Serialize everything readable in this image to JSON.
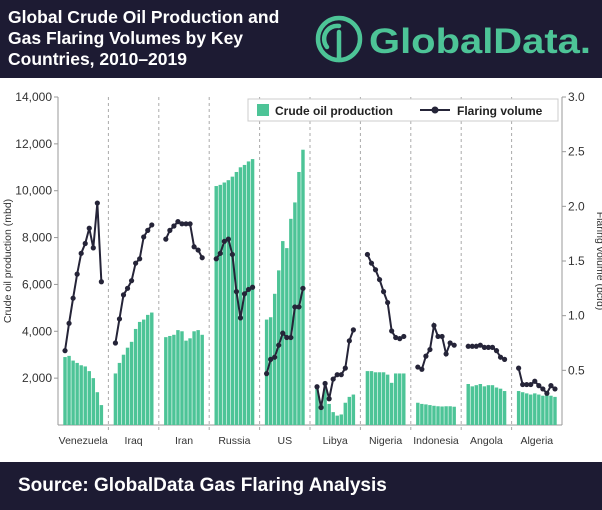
{
  "header": {
    "title_lines": [
      "Global Crude Oil Production and",
      "Gas Flaring Volumes by Key",
      "Countries, 2010–2019"
    ],
    "logo_text": "GlobalData."
  },
  "footer": {
    "source": "Source:  GlobalData Gas Flaring Analysis"
  },
  "colors": {
    "bar": "#4dc497",
    "line": "#252438",
    "header_bg": "#1d1b33",
    "logo": "#4dc497"
  },
  "chart_data": {
    "type": "bar+line",
    "years": [
      2010,
      2019
    ],
    "categories": [
      "Venezuela",
      "Iraq",
      "Iran",
      "Russia",
      "US",
      "Libya",
      "Nigeria",
      "Indonesia",
      "Angola",
      "Algeria"
    ],
    "y_left": {
      "label": "Crude oil production (mbd)",
      "range": [
        0,
        14000
      ],
      "ticks": [
        "2,000",
        "4,000",
        "6,000",
        "8,000",
        "10,000",
        "12,000",
        "14,000"
      ]
    },
    "y_right": {
      "label": "Flaring volume (bcfd)",
      "range": [
        0,
        3.0
      ],
      "ticks": [
        "0.5",
        "1.0",
        "1.5",
        "2.0",
        "2.5",
        "3.0"
      ]
    },
    "legend": {
      "position": "top-right",
      "entries": [
        "Crude oil production",
        "Flaring volume"
      ]
    },
    "series": [
      {
        "name": "Crude oil production",
        "type": "bar",
        "axis": "left",
        "values": [
          [
            2900,
            2950,
            2750,
            2650,
            2550,
            2500,
            2300,
            2000,
            1400,
            850
          ],
          [
            2200,
            2650,
            3000,
            3300,
            3550,
            4100,
            4400,
            4500,
            4700,
            4800
          ],
          [
            3750,
            3800,
            3850,
            4050,
            4000,
            3600,
            3700,
            4000,
            4050,
            3850
          ],
          [
            10200,
            10250,
            10350,
            10450,
            10600,
            10800,
            11000,
            11100,
            11250,
            11350
          ],
          [
            4500,
            4600,
            5600,
            6600,
            7850,
            7550,
            8800,
            9500,
            10800,
            11750
          ],
          [
            1650,
            900,
            1550,
            900,
            550,
            400,
            450,
            950,
            1200,
            1300
          ],
          [
            2300,
            2300,
            2250,
            2250,
            2250,
            2150,
            1800,
            2200,
            2200,
            2200
          ],
          [
            950,
            900,
            880,
            850,
            820,
            800,
            790,
            800,
            800,
            780
          ],
          [
            1750,
            1650,
            1700,
            1750,
            1650,
            1700,
            1700,
            1600,
            1550,
            1450
          ],
          [
            1450,
            1400,
            1350,
            1300,
            1350,
            1300,
            1250,
            1300,
            1250,
            1200
          ]
        ]
      },
      {
        "name": "Flaring volume",
        "type": "line",
        "axis": "right",
        "values": [
          [
            0.68,
            0.93,
            1.16,
            1.38,
            1.57,
            1.66,
            1.8,
            1.62,
            2.03,
            1.31
          ],
          [
            0.75,
            0.97,
            1.19,
            1.25,
            1.32,
            1.48,
            1.52,
            1.72,
            1.78,
            1.83
          ],
          [
            1.7,
            1.78,
            1.82,
            1.86,
            1.84,
            1.84,
            1.84,
            1.63,
            1.6,
            1.53
          ],
          [
            1.52,
            1.57,
            1.68,
            1.7,
            1.56,
            1.22,
            0.98,
            1.2,
            1.24,
            1.26
          ],
          [
            0.47,
            0.6,
            0.62,
            0.73,
            0.84,
            0.8,
            0.8,
            1.08,
            1.08,
            1.25
          ],
          [
            0.35,
            0.16,
            0.38,
            0.24,
            0.42,
            0.46,
            0.46,
            0.52,
            0.77,
            0.87
          ],
          [
            1.56,
            1.48,
            1.42,
            1.33,
            1.22,
            1.12,
            0.86,
            0.8,
            0.79,
            0.81
          ],
          [
            0.53,
            0.51,
            0.63,
            0.69,
            0.91,
            0.81,
            0.81,
            0.65,
            0.75,
            0.73
          ],
          [
            0.72,
            0.72,
            0.72,
            0.73,
            0.71,
            0.71,
            0.71,
            0.68,
            0.62,
            0.6
          ],
          [
            0.52,
            0.37,
            0.37,
            0.37,
            0.4,
            0.36,
            0.33,
            0.29,
            0.36,
            0.33
          ]
        ]
      }
    ]
  }
}
